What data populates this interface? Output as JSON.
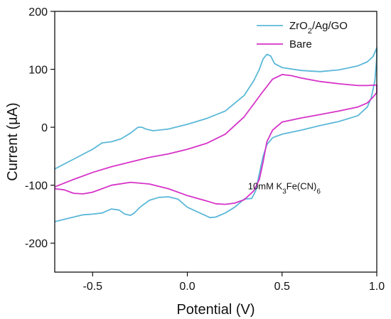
{
  "chart_data": {
    "type": "line",
    "xlabel": "Potential (V)",
    "ylabel": "Current (µA)",
    "xlim": [
      -0.7,
      1.0
    ],
    "ylim": [
      -250,
      200
    ],
    "x_ticks": [
      -0.5,
      0.0,
      0.5,
      1.0
    ],
    "x_tick_labels": [
      "-0.5",
      "0.0",
      "0.5",
      "1.0"
    ],
    "y_ticks": [
      -200,
      -100,
      0,
      100,
      200
    ],
    "y_tick_labels": [
      "-200",
      "-100",
      "0",
      "100",
      "200"
    ],
    "grid": false,
    "legend_position": "top-right",
    "annotation": {
      "text_main": "10mM K",
      "sub1": "3",
      "text_mid": "Fe(CN)",
      "sub2": "6",
      "x": 0.32,
      "y": -107
    },
    "series": [
      {
        "name": "ZrO2/Ag/GO",
        "legend_main": "ZrO",
        "legend_sub": "2",
        "legend_rest": "/Ag/GO",
        "color": "#5bb8d8",
        "points": [
          [
            -0.7,
            -72
          ],
          [
            -0.6,
            -55
          ],
          [
            -0.5,
            -38
          ],
          [
            -0.45,
            -27
          ],
          [
            -0.4,
            -25
          ],
          [
            -0.35,
            -20
          ],
          [
            -0.3,
            -10
          ],
          [
            -0.26,
            0
          ],
          [
            -0.24,
            0
          ],
          [
            -0.22,
            -3
          ],
          [
            -0.18,
            -6
          ],
          [
            -0.1,
            -3
          ],
          [
            0.0,
            5
          ],
          [
            0.1,
            15
          ],
          [
            0.2,
            28
          ],
          [
            0.3,
            55
          ],
          [
            0.35,
            80
          ],
          [
            0.38,
            100
          ],
          [
            0.4,
            118
          ],
          [
            0.42,
            126
          ],
          [
            0.44,
            123
          ],
          [
            0.46,
            110
          ],
          [
            0.5,
            103
          ],
          [
            0.6,
            98
          ],
          [
            0.7,
            96
          ],
          [
            0.8,
            99
          ],
          [
            0.9,
            106
          ],
          [
            0.95,
            113
          ],
          [
            0.98,
            122
          ],
          [
            1.0,
            137
          ],
          [
            1.0,
            120
          ],
          [
            0.99,
            80
          ],
          [
            0.97,
            50
          ],
          [
            0.95,
            35
          ],
          [
            0.9,
            20
          ],
          [
            0.8,
            10
          ],
          [
            0.7,
            3
          ],
          [
            0.6,
            -5
          ],
          [
            0.5,
            -12
          ],
          [
            0.45,
            -18
          ],
          [
            0.42,
            -30
          ],
          [
            0.4,
            -50
          ],
          [
            0.38,
            -80
          ],
          [
            0.36,
            -110
          ],
          [
            0.34,
            -123
          ],
          [
            0.3,
            -124
          ],
          [
            0.25,
            -138
          ],
          [
            0.2,
            -148
          ],
          [
            0.15,
            -155
          ],
          [
            0.12,
            -156
          ],
          [
            0.08,
            -150
          ],
          [
            0.0,
            -138
          ],
          [
            -0.05,
            -124
          ],
          [
            -0.1,
            -120
          ],
          [
            -0.15,
            -121
          ],
          [
            -0.2,
            -126
          ],
          [
            -0.25,
            -138
          ],
          [
            -0.28,
            -148
          ],
          [
            -0.3,
            -152
          ],
          [
            -0.33,
            -150
          ],
          [
            -0.36,
            -143
          ],
          [
            -0.4,
            -141
          ],
          [
            -0.45,
            -148
          ],
          [
            -0.5,
            -150
          ],
          [
            -0.55,
            -151
          ],
          [
            -0.6,
            -155
          ],
          [
            -0.7,
            -163
          ]
        ]
      },
      {
        "name": "Bare",
        "legend_main": "Bare",
        "legend_sub": "",
        "legend_rest": "",
        "color": "#d633c8",
        "points": [
          [
            -0.7,
            -103
          ],
          [
            -0.6,
            -90
          ],
          [
            -0.5,
            -78
          ],
          [
            -0.4,
            -68
          ],
          [
            -0.3,
            -60
          ],
          [
            -0.2,
            -52
          ],
          [
            -0.1,
            -46
          ],
          [
            0.0,
            -38
          ],
          [
            0.1,
            -28
          ],
          [
            0.2,
            -12
          ],
          [
            0.3,
            18
          ],
          [
            0.35,
            40
          ],
          [
            0.4,
            62
          ],
          [
            0.45,
            83
          ],
          [
            0.5,
            91
          ],
          [
            0.55,
            89
          ],
          [
            0.6,
            85
          ],
          [
            0.7,
            79
          ],
          [
            0.8,
            75
          ],
          [
            0.9,
            72
          ],
          [
            0.95,
            72
          ],
          [
            1.0,
            73
          ],
          [
            1.0,
            60
          ],
          [
            0.98,
            52
          ],
          [
            0.95,
            42
          ],
          [
            0.9,
            35
          ],
          [
            0.8,
            28
          ],
          [
            0.7,
            22
          ],
          [
            0.6,
            16
          ],
          [
            0.5,
            9
          ],
          [
            0.45,
            -5
          ],
          [
            0.42,
            -25
          ],
          [
            0.4,
            -60
          ],
          [
            0.38,
            -90
          ],
          [
            0.35,
            -110
          ],
          [
            0.3,
            -125
          ],
          [
            0.25,
            -131
          ],
          [
            0.2,
            -133
          ],
          [
            0.15,
            -132
          ],
          [
            0.1,
            -127
          ],
          [
            0.0,
            -118
          ],
          [
            -0.1,
            -106
          ],
          [
            -0.2,
            -98
          ],
          [
            -0.3,
            -95
          ],
          [
            -0.4,
            -100
          ],
          [
            -0.5,
            -112
          ],
          [
            -0.55,
            -115
          ],
          [
            -0.6,
            -114
          ],
          [
            -0.65,
            -108
          ],
          [
            -0.7,
            -106
          ]
        ]
      }
    ]
  }
}
